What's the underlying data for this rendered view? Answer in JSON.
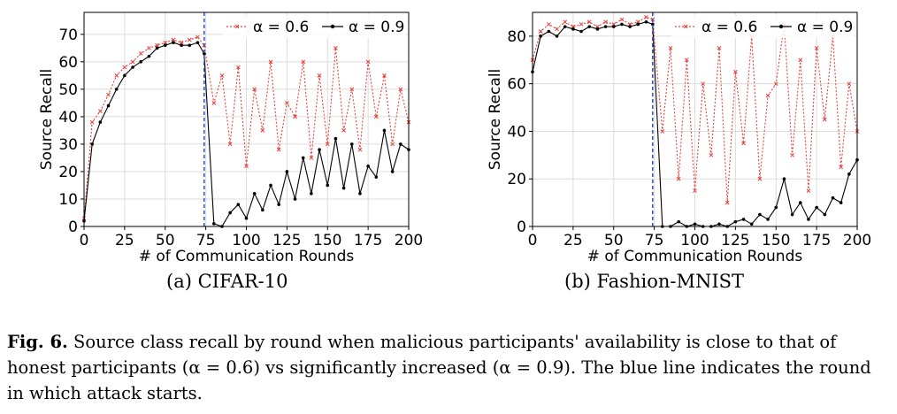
{
  "figure": {
    "subcaptions": [
      "(a) CIFAR-10",
      "(b) Fashion-MNIST"
    ],
    "caption_label": "Fig. 6.",
    "caption_text": "Source class recall by round when malicious participants' availability is close to that of honest participants (α = 0.6) vs significantly increased (α = 0.9). The blue line indicates the round in which attack starts."
  },
  "colors": {
    "alpha06": "#e8403a",
    "alpha09": "#000000",
    "attack_line": "#3050c8",
    "grid": "#dcdcdc"
  },
  "chart_data": [
    {
      "type": "line",
      "subtitle": "(a) CIFAR-10",
      "xlabel": "# of Communication Rounds",
      "ylabel": "Source Recall",
      "xlim": [
        0,
        200
      ],
      "ylim": [
        0,
        78
      ],
      "xticks": [
        0,
        25,
        50,
        75,
        100,
        125,
        150,
        175,
        200
      ],
      "yticks": [
        0,
        10,
        20,
        30,
        40,
        50,
        60,
        70
      ],
      "grid": true,
      "legend_position": "top-right",
      "attack_start_round": 74,
      "x": [
        0,
        5,
        10,
        15,
        20,
        25,
        30,
        35,
        40,
        45,
        50,
        55,
        60,
        65,
        70,
        74,
        80,
        85,
        90,
        95,
        100,
        105,
        110,
        115,
        120,
        125,
        130,
        135,
        140,
        145,
        150,
        155,
        160,
        165,
        170,
        175,
        180,
        185,
        190,
        195,
        200
      ],
      "series": [
        {
          "name": "α = 0.6",
          "marker": "x",
          "linestyle": "dotted",
          "values": [
            3,
            38,
            42,
            48,
            55,
            58,
            60,
            63,
            65,
            66,
            67,
            68,
            67,
            68,
            69,
            66,
            45,
            55,
            30,
            58,
            22,
            50,
            35,
            60,
            28,
            45,
            40,
            60,
            25,
            55,
            30,
            65,
            35,
            50,
            28,
            60,
            40,
            55,
            30,
            50,
            38
          ]
        },
        {
          "name": "α = 0.9",
          "marker": "dot",
          "linestyle": "solid",
          "values": [
            2,
            30,
            38,
            44,
            50,
            55,
            58,
            60,
            62,
            65,
            66,
            67,
            66,
            66,
            67,
            63,
            1,
            0,
            5,
            8,
            3,
            12,
            6,
            15,
            8,
            20,
            10,
            25,
            12,
            28,
            15,
            32,
            14,
            30,
            12,
            22,
            18,
            35,
            20,
            30,
            28
          ]
        }
      ]
    },
    {
      "type": "line",
      "subtitle": "(b) Fashion-MNIST",
      "xlabel": "# of Communication Rounds",
      "ylabel": "Source Recall",
      "xlim": [
        0,
        200
      ],
      "ylim": [
        0,
        90
      ],
      "xticks": [
        0,
        25,
        50,
        75,
        100,
        125,
        150,
        175,
        200
      ],
      "yticks": [
        0,
        20,
        40,
        60,
        80
      ],
      "grid": true,
      "legend_position": "top-right",
      "attack_start_round": 74,
      "x": [
        0,
        5,
        10,
        15,
        20,
        25,
        30,
        35,
        40,
        45,
        50,
        55,
        60,
        65,
        70,
        74,
        80,
        85,
        90,
        95,
        100,
        105,
        110,
        115,
        120,
        125,
        130,
        135,
        140,
        145,
        150,
        155,
        160,
        165,
        170,
        175,
        180,
        185,
        190,
        195,
        200
      ],
      "series": [
        {
          "name": "α = 0.6",
          "marker": "x",
          "linestyle": "dotted",
          "values": [
            70,
            82,
            85,
            83,
            86,
            84,
            85,
            86,
            84,
            86,
            85,
            87,
            85,
            86,
            88,
            87,
            40,
            75,
            20,
            70,
            15,
            60,
            30,
            75,
            10,
            65,
            35,
            80,
            20,
            55,
            60,
            85,
            30,
            70,
            15,
            75,
            45,
            80,
            25,
            60,
            40
          ]
        },
        {
          "name": "α = 0.9",
          "marker": "dot",
          "linestyle": "solid",
          "values": [
            65,
            80,
            82,
            80,
            84,
            83,
            82,
            84,
            83,
            84,
            84,
            85,
            84,
            85,
            86,
            85,
            0,
            0,
            2,
            0,
            1,
            0,
            0,
            1,
            0,
            2,
            3,
            1,
            5,
            3,
            8,
            20,
            5,
            10,
            3,
            8,
            5,
            12,
            10,
            22,
            28
          ]
        }
      ]
    }
  ]
}
